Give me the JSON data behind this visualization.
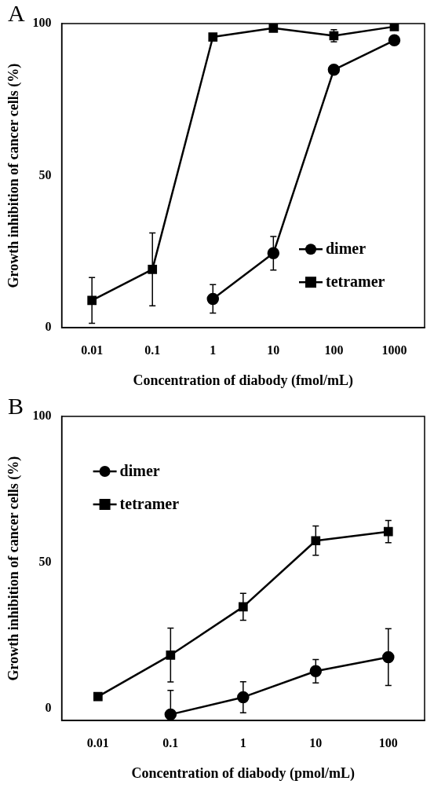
{
  "chart_data": [
    {
      "type": "line",
      "title": "A",
      "xlabel": "Concentration of diabody (fmol/mL)",
      "ylabel": "Growth inhibition of cancer cells (%)",
      "log": "x",
      "xlim": [
        0.00316,
        3162
      ],
      "xticks": [
        0.01,
        0.1,
        1,
        10,
        100,
        1000
      ],
      "ylim": [
        0,
        100
      ],
      "yticks": [
        0,
        50,
        100
      ],
      "grid": false,
      "legend": "bottom right",
      "line_style": "solid",
      "series": [
        {
          "name": "dimer",
          "color": "#000000",
          "marker": "circle",
          "x": [
            1,
            10,
            100,
            1000
          ],
          "values": [
            9.5,
            24.5,
            84.8,
            94.5
          ],
          "errors": [
            4.7,
            5.5,
            null,
            null
          ]
        },
        {
          "name": "tetramer",
          "color": "#000000",
          "marker": "square",
          "x": [
            0.01,
            0.1,
            1,
            10,
            100,
            1000
          ],
          "values": [
            9,
            19.2,
            95.6,
            98.5,
            96,
            99
          ],
          "errors": [
            7.5,
            12,
            null,
            null,
            2,
            null
          ]
        }
      ]
    },
    {
      "type": "line",
      "title": "B",
      "xlabel": "Concentration of diabody (pmol/mL)",
      "ylabel": "Growth inhibition of cancer cells (%)",
      "log": "x",
      "xlim": [
        0.00316,
        316
      ],
      "xticks": [
        0.01,
        0.1,
        1,
        10,
        100
      ],
      "ylim": [
        -4,
        100
      ],
      "yticks": [
        0,
        50,
        100
      ],
      "grid": false,
      "legend": "top left",
      "line_style": "solid",
      "series": [
        {
          "name": "dimer",
          "color": "#000000",
          "marker": "circle",
          "x": [
            0.1,
            1,
            10,
            100
          ],
          "values": [
            -1.9,
            4,
            12.9,
            17.7
          ],
          "errors": [
            [
              -1.9,
              6.3
            ],
            5.3,
            4,
            9.7
          ]
        },
        {
          "name": "tetramer",
          "color": "#000000",
          "marker": "square",
          "x": [
            0.01,
            0.1,
            1,
            10,
            100
          ],
          "values": [
            4.2,
            18.4,
            34.9,
            57.5,
            60.6
          ],
          "errors": [
            null,
            9.2,
            4.6,
            5,
            3.8
          ]
        }
      ]
    }
  ]
}
